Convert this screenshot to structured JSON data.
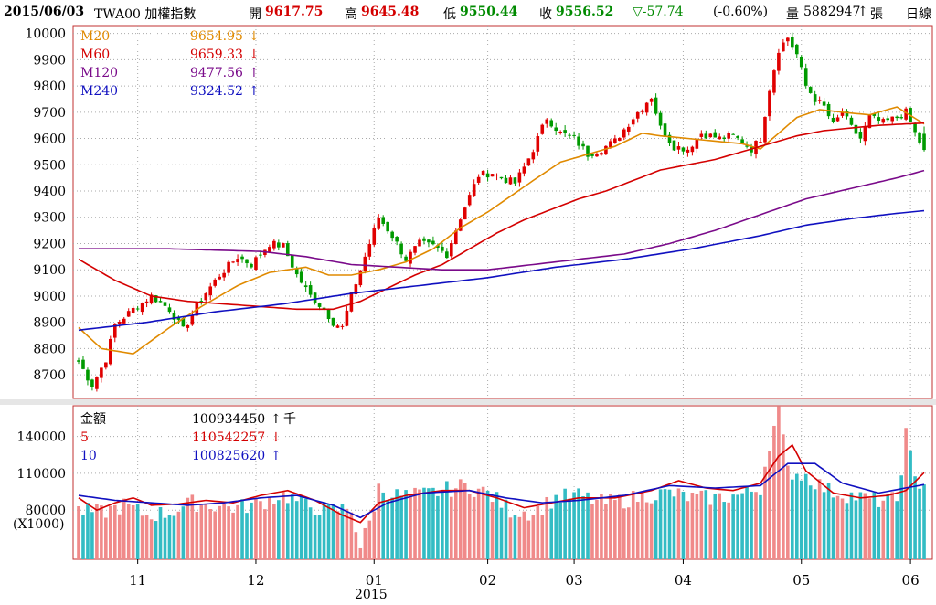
{
  "header": {
    "date": "2015/06/03",
    "name": "TWA00 加權指數",
    "open_label": "開",
    "open": "9617.75",
    "high_label": "高",
    "high": "9645.48",
    "low_label": "低",
    "low": "9550.44",
    "close_label": "收",
    "close": "9556.52",
    "change": "▽-57.74",
    "change_pct": "(-0.60%)",
    "volume_label": "量",
    "volume": "5882947",
    "volume_arrow": "↑",
    "volume_unit": "張",
    "period": "日線"
  },
  "legend_price": [
    {
      "name": "M20",
      "value": "9654.95",
      "arrow": "↓",
      "color": "#e08a00"
    },
    {
      "name": "M60",
      "value": "9659.33",
      "arrow": "↓",
      "color": "#d40000"
    },
    {
      "name": "M120",
      "value": "9477.56",
      "arrow": "↑",
      "color": "#7a0a8a"
    },
    {
      "name": "M240",
      "value": "9324.52",
      "arrow": "↑",
      "color": "#1010c0"
    }
  ],
  "legend_volume": [
    {
      "name": "金額",
      "value": "100934450",
      "arrow": "↑",
      "unit": "千",
      "color": "#000000"
    },
    {
      "name": "5",
      "value": "110542257",
      "arrow": "↓",
      "unit": "",
      "color": "#d40000"
    },
    {
      "name": "10",
      "value": "100825620",
      "arrow": "↑",
      "unit": "",
      "color": "#1010c0"
    }
  ],
  "volume_unit_note": "(X1000)",
  "x_year_label": "2015",
  "colors": {
    "up": "#e00000",
    "down": "#009a00",
    "vol_up": "#f08a8a",
    "vol_down": "#33bcc4",
    "grid": "#aaaaaa",
    "frame": "#c03030"
  },
  "chart_data": [
    {
      "type": "candlestick",
      "title": "TWA00 加權指數",
      "ylim": [
        8610,
        10030
      ],
      "yticks": [
        10000,
        9900,
        9800,
        9700,
        9600,
        9500,
        9400,
        9300,
        9200,
        9100,
        9000,
        8900,
        8800,
        8700
      ],
      "x_ticks": [
        "11",
        "12",
        "01",
        "02",
        "03",
        "04",
        "05",
        "06"
      ],
      "x_tick_bar_index": [
        13,
        39,
        65,
        90,
        109,
        133,
        159,
        183
      ],
      "bar_count": 187,
      "ohlc_anchor_closes": [
        [
          0,
          8750
        ],
        [
          3,
          8660
        ],
        [
          6,
          8760
        ],
        [
          8,
          8890
        ],
        [
          12,
          8950
        ],
        [
          16,
          9000
        ],
        [
          20,
          8950
        ],
        [
          23,
          8870
        ],
        [
          27,
          8990
        ],
        [
          31,
          9080
        ],
        [
          35,
          9150
        ],
        [
          38,
          9120
        ],
        [
          42,
          9200
        ],
        [
          45,
          9190
        ],
        [
          48,
          9080
        ],
        [
          51,
          9000
        ],
        [
          54,
          8950
        ],
        [
          56,
          8900
        ],
        [
          58,
          8880
        ],
        [
          60,
          9000
        ],
        [
          63,
          9150
        ],
        [
          66,
          9300
        ],
        [
          69,
          9230
        ],
        [
          72,
          9140
        ],
        [
          75,
          9200
        ],
        [
          78,
          9190
        ],
        [
          81,
          9160
        ],
        [
          84,
          9300
        ],
        [
          86,
          9380
        ],
        [
          88,
          9460
        ],
        [
          91,
          9470
        ],
        [
          93,
          9450
        ],
        [
          96,
          9430
        ],
        [
          98,
          9490
        ],
        [
          100,
          9560
        ],
        [
          103,
          9680
        ],
        [
          106,
          9620
        ],
        [
          109,
          9600
        ],
        [
          112,
          9540
        ],
        [
          115,
          9560
        ],
        [
          118,
          9590
        ],
        [
          122,
          9680
        ],
        [
          126,
          9760
        ],
        [
          128,
          9640
        ],
        [
          131,
          9570
        ],
        [
          134,
          9560
        ],
        [
          137,
          9620
        ],
        [
          141,
          9600
        ],
        [
          144,
          9610
        ],
        [
          148,
          9560
        ],
        [
          150,
          9600
        ],
        [
          152,
          9790
        ],
        [
          154,
          9940
        ],
        [
          156,
          9985
        ],
        [
          158,
          9920
        ],
        [
          160,
          9800
        ],
        [
          162,
          9750
        ],
        [
          164,
          9720
        ],
        [
          166,
          9650
        ],
        [
          168,
          9700
        ],
        [
          170,
          9640
        ],
        [
          172,
          9600
        ],
        [
          174,
          9680
        ],
        [
          177,
          9660
        ],
        [
          180,
          9680
        ],
        [
          182,
          9700
        ],
        [
          184,
          9620
        ],
        [
          186,
          9556
        ]
      ],
      "ohlc_last": {
        "open": 9617.75,
        "high": 9645.48,
        "low": 9550.44,
        "close": 9556.52
      },
      "series": [
        {
          "name": "M20",
          "final": 9654.95,
          "anchors": [
            [
              0,
              8880
            ],
            [
              5,
              8800
            ],
            [
              12,
              8780
            ],
            [
              20,
              8880
            ],
            [
              27,
              8960
            ],
            [
              35,
              9040
            ],
            [
              42,
              9090
            ],
            [
              50,
              9110
            ],
            [
              55,
              9080
            ],
            [
              60,
              9080
            ],
            [
              66,
              9100
            ],
            [
              72,
              9130
            ],
            [
              78,
              9180
            ],
            [
              84,
              9260
            ],
            [
              90,
              9320
            ],
            [
              95,
              9380
            ],
            [
              100,
              9440
            ],
            [
              106,
              9510
            ],
            [
              112,
              9540
            ],
            [
              118,
              9570
            ],
            [
              124,
              9620
            ],
            [
              128,
              9610
            ],
            [
              134,
              9600
            ],
            [
              140,
              9590
            ],
            [
              146,
              9580
            ],
            [
              150,
              9560
            ],
            [
              154,
              9620
            ],
            [
              158,
              9680
            ],
            [
              163,
              9710
            ],
            [
              168,
              9700
            ],
            [
              174,
              9690
            ],
            [
              180,
              9720
            ],
            [
              186,
              9655
            ]
          ]
        },
        {
          "name": "M60",
          "final": 9659.33,
          "anchors": [
            [
              0,
              9140
            ],
            [
              8,
              9060
            ],
            [
              16,
              9000
            ],
            [
              24,
              8980
            ],
            [
              32,
              8970
            ],
            [
              40,
              8960
            ],
            [
              48,
              8950
            ],
            [
              56,
              8950
            ],
            [
              62,
              8980
            ],
            [
              68,
              9030
            ],
            [
              74,
              9080
            ],
            [
              80,
              9120
            ],
            [
              86,
              9180
            ],
            [
              92,
              9240
            ],
            [
              98,
              9290
            ],
            [
              104,
              9330
            ],
            [
              110,
              9370
            ],
            [
              116,
              9400
            ],
            [
              122,
              9440
            ],
            [
              128,
              9480
            ],
            [
              134,
              9500
            ],
            [
              140,
              9520
            ],
            [
              146,
              9550
            ],
            [
              152,
              9580
            ],
            [
              158,
              9610
            ],
            [
              164,
              9630
            ],
            [
              170,
              9640
            ],
            [
              176,
              9650
            ],
            [
              186,
              9659
            ]
          ]
        },
        {
          "name": "M120",
          "final": 9477.56,
          "anchors": [
            [
              0,
              9180
            ],
            [
              20,
              9180
            ],
            [
              40,
              9170
            ],
            [
              50,
              9150
            ],
            [
              60,
              9120
            ],
            [
              70,
              9110
            ],
            [
              80,
              9100
            ],
            [
              90,
              9100
            ],
            [
              100,
              9120
            ],
            [
              110,
              9140
            ],
            [
              120,
              9160
            ],
            [
              130,
              9200
            ],
            [
              140,
              9250
            ],
            [
              150,
              9310
            ],
            [
              160,
              9370
            ],
            [
              170,
              9410
            ],
            [
              180,
              9450
            ],
            [
              186,
              9478
            ]
          ]
        },
        {
          "name": "M240",
          "final": 9324.52,
          "anchors": [
            [
              0,
              8870
            ],
            [
              15,
              8900
            ],
            [
              30,
              8940
            ],
            [
              45,
              8970
            ],
            [
              60,
              9010
            ],
            [
              75,
              9040
            ],
            [
              90,
              9070
            ],
            [
              105,
              9110
            ],
            [
              120,
              9140
            ],
            [
              135,
              9180
            ],
            [
              150,
              9230
            ],
            [
              160,
              9270
            ],
            [
              170,
              9295
            ],
            [
              180,
              9315
            ],
            [
              186,
              9325
            ]
          ]
        }
      ]
    },
    {
      "type": "bar",
      "title": "金額",
      "ylabel": "(X1000)",
      "ylim": [
        40000,
        165000
      ],
      "yticks": [
        140000,
        110000,
        80000
      ],
      "bar_anchor_values": [
        [
          0,
          80000
        ],
        [
          5,
          78000
        ],
        [
          10,
          84000
        ],
        [
          15,
          76000
        ],
        [
          20,
          78000
        ],
        [
          25,
          86000
        ],
        [
          30,
          84000
        ],
        [
          35,
          82000
        ],
        [
          40,
          86000
        ],
        [
          45,
          93000
        ],
        [
          50,
          84000
        ],
        [
          55,
          80000
        ],
        [
          60,
          82000
        ],
        [
          62,
          50000
        ],
        [
          64,
          70000
        ],
        [
          66,
          98000
        ],
        [
          70,
          92000
        ],
        [
          75,
          92000
        ],
        [
          80,
          96000
        ],
        [
          85,
          100000
        ],
        [
          90,
          94000
        ],
        [
          95,
          80000
        ],
        [
          100,
          78000
        ],
        [
          105,
          90000
        ],
        [
          110,
          92000
        ],
        [
          115,
          86000
        ],
        [
          120,
          88000
        ],
        [
          125,
          92000
        ],
        [
          130,
          94000
        ],
        [
          135,
          90000
        ],
        [
          140,
          90000
        ],
        [
          145,
          92000
        ],
        [
          150,
          98000
        ],
        [
          152,
          135000
        ],
        [
          154,
          160000
        ],
        [
          156,
          112000
        ],
        [
          160,
          108000
        ],
        [
          165,
          96000
        ],
        [
          170,
          92000
        ],
        [
          175,
          88000
        ],
        [
          180,
          88000
        ],
        [
          182,
          142000
        ],
        [
          184,
          104000
        ],
        [
          186,
          100934
        ]
      ],
      "series": [
        {
          "name": "5",
          "final": 110542257,
          "anchors": [
            [
              0,
              90000
            ],
            [
              4,
              80000
            ],
            [
              8,
              86000
            ],
            [
              12,
              90000
            ],
            [
              16,
              84000
            ],
            [
              22,
              85000
            ],
            [
              28,
              88000
            ],
            [
              34,
              86000
            ],
            [
              40,
              92000
            ],
            [
              46,
              96000
            ],
            [
              52,
              88000
            ],
            [
              58,
              76000
            ],
            [
              62,
              70000
            ],
            [
              66,
              86000
            ],
            [
              72,
              92000
            ],
            [
              80,
              96000
            ],
            [
              86,
              96000
            ],
            [
              92,
              90000
            ],
            [
              98,
              82000
            ],
            [
              104,
              86000
            ],
            [
              110,
              90000
            ],
            [
              118,
              90000
            ],
            [
              126,
              96000
            ],
            [
              132,
              104000
            ],
            [
              138,
              98000
            ],
            [
              144,
              96000
            ],
            [
              150,
              102000
            ],
            [
              154,
              124000
            ],
            [
              157,
              133000
            ],
            [
              160,
              112000
            ],
            [
              166,
              94000
            ],
            [
              172,
              90000
            ],
            [
              178,
              92000
            ],
            [
              182,
              96000
            ],
            [
              186,
              110542
            ]
          ]
        },
        {
          "name": "10",
          "final": 100825620,
          "anchors": [
            [
              0,
              92000
            ],
            [
              8,
              88000
            ],
            [
              16,
              86000
            ],
            [
              24,
              84000
            ],
            [
              32,
              86000
            ],
            [
              40,
              90000
            ],
            [
              48,
              92000
            ],
            [
              56,
              84000
            ],
            [
              62,
              74000
            ],
            [
              68,
              86000
            ],
            [
              76,
              94000
            ],
            [
              86,
              96000
            ],
            [
              94,
              90000
            ],
            [
              102,
              86000
            ],
            [
              110,
              88000
            ],
            [
              120,
              92000
            ],
            [
              130,
              100000
            ],
            [
              140,
              98000
            ],
            [
              150,
              100000
            ],
            [
              156,
              118000
            ],
            [
              162,
              118000
            ],
            [
              168,
              102000
            ],
            [
              176,
              94000
            ],
            [
              186,
              100826
            ]
          ]
        }
      ]
    }
  ]
}
